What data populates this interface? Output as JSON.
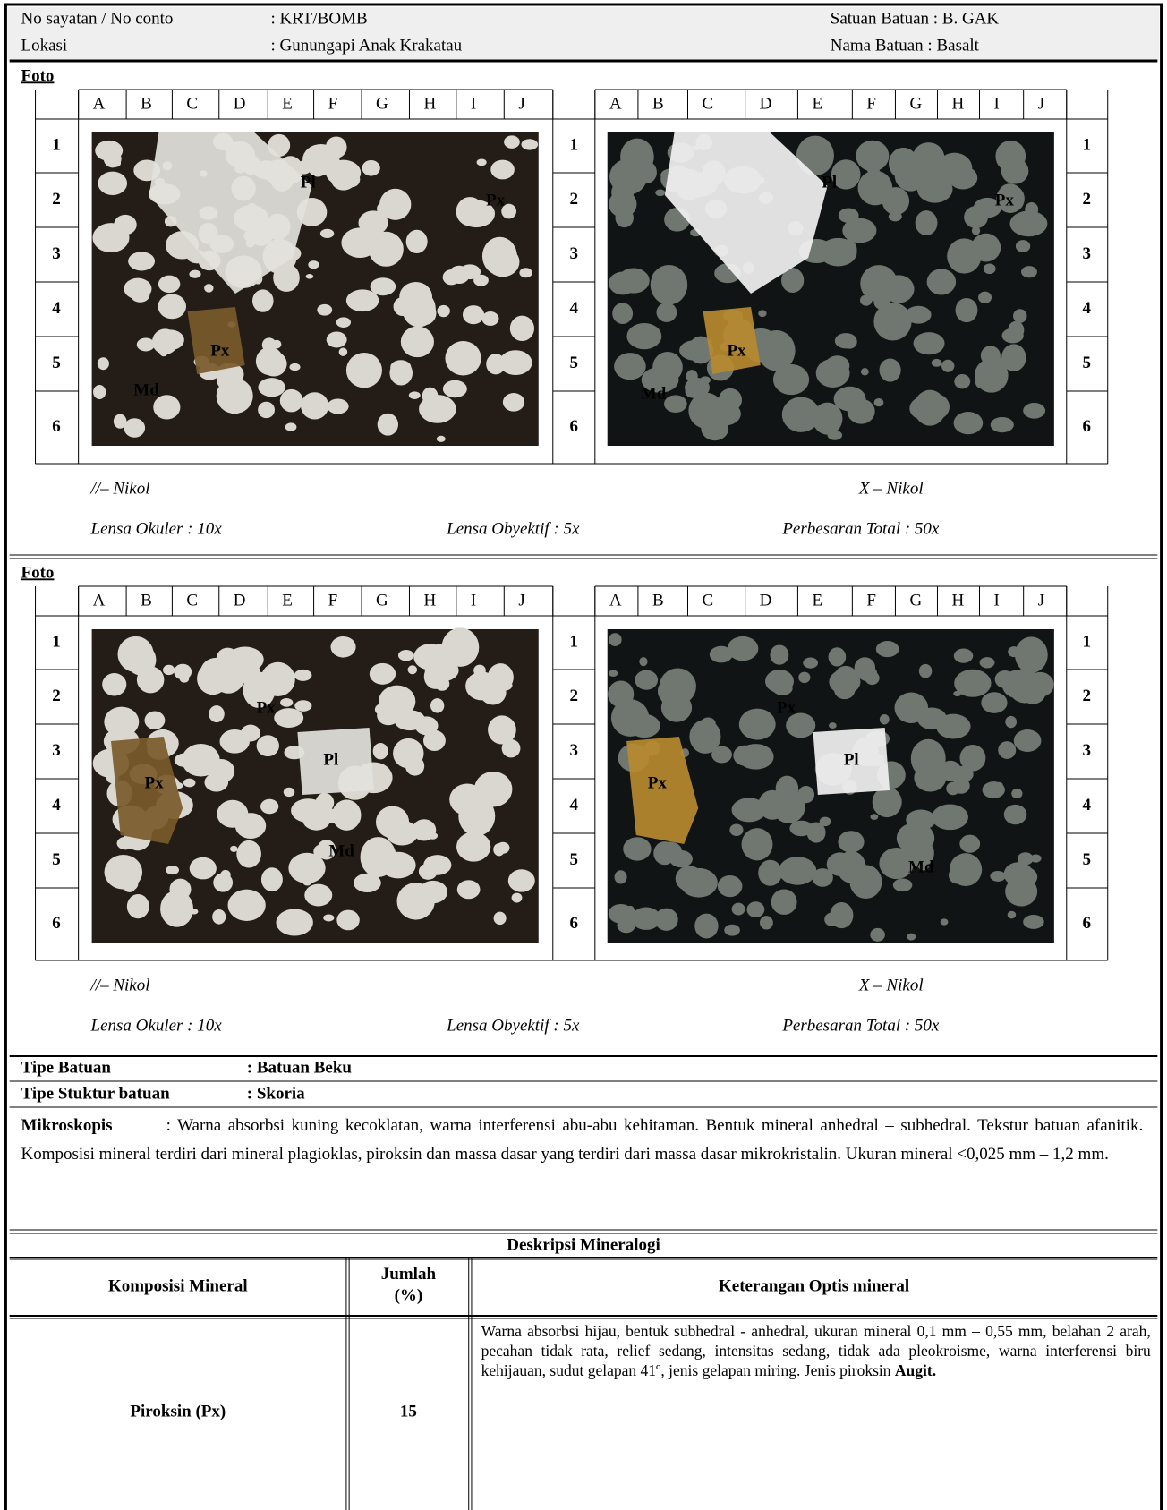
{
  "header": {
    "sample_label": "No sayatan / No conto",
    "sample_value": ": KRT/BOMB",
    "location_label": "Lokasi",
    "location_value": ": Gunungapi Anak Krakatau",
    "unit": "Satuan Batuan : B. GAK",
    "rock_name": "Nama Batuan  : Basalt"
  },
  "photo_sections": [
    {
      "title": "Foto",
      "columns": [
        "A",
        "B",
        "C",
        "D",
        "E",
        "F",
        "G",
        "H",
        "I",
        "J"
      ],
      "rows": [
        "1",
        "2",
        "3",
        "4",
        "5",
        "6"
      ],
      "ppl_labels": [
        "Pl",
        "Px",
        "Px",
        "Md"
      ],
      "xpl_labels": [
        "Pl",
        "Px",
        "Px",
        "Md"
      ],
      "ppl_caption": "//– Nikol",
      "xpl_caption": "X – Nikol",
      "ocular": "Lensa Okuler : 10x",
      "objective": "Lensa Obyektif : 5x",
      "magnification": "Perbesaran Total : 50x"
    },
    {
      "title": "Foto",
      "columns": [
        "A",
        "B",
        "C",
        "D",
        "E",
        "F",
        "G",
        "H",
        "I",
        "J"
      ],
      "rows": [
        "1",
        "2",
        "3",
        "4",
        "5",
        "6"
      ],
      "ppl_labels": [
        "Px",
        "Pl",
        "Px",
        "Md"
      ],
      "xpl_labels": [
        "Px",
        "Pl",
        "Px",
        "Md"
      ],
      "ppl_caption": "//– Nikol",
      "xpl_caption": "X – Nikol",
      "ocular": "Lensa Okuler : 10x",
      "objective": "Lensa Obyektif : 5x",
      "magnification": "Perbesaran Total : 50x"
    }
  ],
  "rock_type": {
    "label": "Tipe Batuan",
    "value": ": Batuan Beku"
  },
  "structure": {
    "label": "Tipe Stuktur batuan",
    "value": ": Skoria"
  },
  "microscopic": {
    "label": "Mikroskopis",
    "text": ": Warna absorbsi kuning kecoklatan, warna interferensi abu-abu kehitaman. Bentuk mineral anhedral – subhedral. Tekstur batuan afanitik. Komposisi mineral terdiri dari mineral plagioklas, piroksin dan massa dasar yang terdiri dari massa dasar mikrokristalin. Ukuran mineral <0,025 mm – 1,2 mm."
  },
  "mineralogy": {
    "title": "Deskripsi Mineralogi",
    "headers": [
      "Komposisi Mineral",
      "Jumlah (%)",
      "Keterangan Optis mineral"
    ],
    "rows": [
      {
        "mineral": "Piroksin (Px)",
        "amount": 15,
        "description": "Warna absorbsi hijau, bentuk subhedral - anhedral, ukuran mineral 0,1 mm – 0,55 mm, belahan 2 arah, pecahan tidak rata, relief sedang, intensitas sedang, tidak ada pleokroisme, warna interferensi biru kehijauan, sudut gelapan 41º, jenis  gelapan  miring. Jenis piroksin",
        "variety": "Augit."
      }
    ]
  }
}
